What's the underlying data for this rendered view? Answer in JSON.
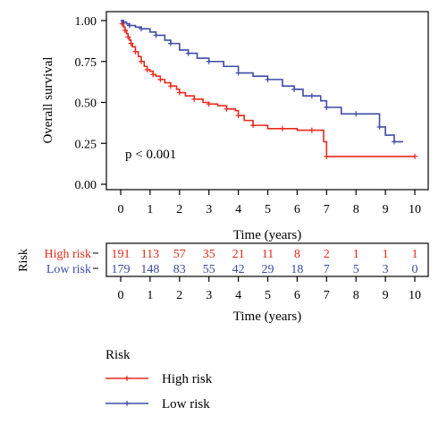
{
  "chart_data": [
    {
      "type": "line",
      "subtype": "kaplan-meier",
      "title": "",
      "xlabel": "Time (years)",
      "ylabel": "Overall survival",
      "xlim": [
        0,
        10
      ],
      "ylim": [
        0,
        1
      ],
      "xticks": [
        0,
        1,
        2,
        3,
        4,
        5,
        6,
        7,
        8,
        9,
        10
      ],
      "yticks": [
        "0.00",
        "0.25",
        "0.50",
        "0.75",
        "1.00"
      ],
      "grid": false,
      "annotation": "p < 0.001",
      "series": [
        {
          "name": "High risk",
          "color": "#e8291c",
          "x": [
            0,
            0.05,
            0.1,
            0.15,
            0.2,
            0.25,
            0.3,
            0.35,
            0.4,
            0.5,
            0.6,
            0.7,
            0.8,
            0.9,
            1.0,
            1.1,
            1.2,
            1.35,
            1.5,
            1.7,
            1.9,
            2.0,
            2.2,
            2.5,
            2.8,
            3.0,
            3.3,
            3.6,
            3.9,
            4.0,
            4.2,
            4.5,
            5.0,
            5.5,
            6.0,
            6.5,
            6.9,
            7.0,
            8.0,
            10.0
          ],
          "y": [
            1.0,
            0.98,
            0.96,
            0.94,
            0.92,
            0.9,
            0.88,
            0.86,
            0.84,
            0.81,
            0.78,
            0.75,
            0.72,
            0.7,
            0.69,
            0.67,
            0.66,
            0.64,
            0.62,
            0.6,
            0.58,
            0.56,
            0.54,
            0.52,
            0.5,
            0.49,
            0.48,
            0.46,
            0.45,
            0.42,
            0.39,
            0.36,
            0.34,
            0.34,
            0.33,
            0.33,
            0.26,
            0.17,
            0.17,
            0.17
          ]
        },
        {
          "name": "Low risk",
          "color": "#3d4ba6",
          "x": [
            0,
            0.1,
            0.2,
            0.3,
            0.5,
            0.7,
            1.0,
            1.2,
            1.5,
            1.7,
            2.0,
            2.3,
            2.6,
            3.0,
            3.5,
            4.0,
            4.5,
            5.0,
            5.5,
            5.9,
            6.2,
            6.5,
            6.8,
            7.0,
            7.5,
            8.0,
            8.5,
            8.8,
            9.0,
            9.3,
            9.6
          ],
          "y": [
            1.0,
            0.99,
            0.98,
            0.97,
            0.96,
            0.95,
            0.93,
            0.91,
            0.88,
            0.86,
            0.82,
            0.8,
            0.77,
            0.75,
            0.72,
            0.68,
            0.66,
            0.64,
            0.6,
            0.58,
            0.54,
            0.54,
            0.51,
            0.47,
            0.43,
            0.43,
            0.43,
            0.35,
            0.3,
            0.26,
            0.26
          ]
        }
      ]
    },
    {
      "type": "table",
      "title": "Risk",
      "xlabel": "Time (years)",
      "columns": [
        0,
        1,
        2,
        3,
        4,
        5,
        6,
        7,
        8,
        9,
        10
      ],
      "rows": [
        {
          "name": "High risk",
          "color": "#e8291c",
          "values": [
            191,
            113,
            57,
            35,
            21,
            11,
            8,
            2,
            1,
            1,
            1
          ]
        },
        {
          "name": "Low risk",
          "color": "#3d4ba6",
          "values": [
            179,
            148,
            83,
            55,
            42,
            29,
            18,
            7,
            5,
            3,
            0
          ]
        }
      ]
    }
  ],
  "legend": {
    "title": "Risk",
    "items": [
      {
        "label": "High risk",
        "color": "#e8291c"
      },
      {
        "label": "Low risk",
        "color": "#3d4ba6"
      }
    ]
  }
}
